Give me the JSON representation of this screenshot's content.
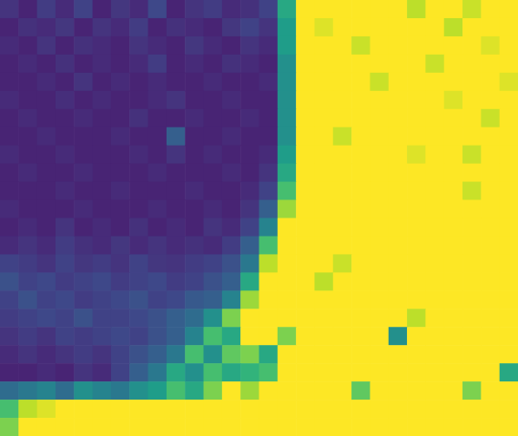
{
  "chart_data": {
    "type": "heatmap",
    "tick_labels": false,
    "color": "viridis",
    "color_range": [
      0,
      1
    ],
    "cells": [
      [
        0.15,
        0.1,
        0.18,
        0.12,
        0.2,
        0.1,
        0.16,
        0.12,
        0.22,
        0.1,
        0.15,
        0.18,
        0.12,
        0.14,
        0.2,
        0.6,
        1,
        1,
        1,
        1,
        1,
        1,
        0.9,
        1,
        1,
        0.92,
        1,
        1
      ],
      [
        0.1,
        0.14,
        0.12,
        0.16,
        0.1,
        0.15,
        0.12,
        0.18,
        0.1,
        0.14,
        0.12,
        0.1,
        0.16,
        0.2,
        0.15,
        0.55,
        1,
        0.95,
        1,
        1,
        1,
        1,
        1,
        1,
        0.9,
        1,
        1,
        1
      ],
      [
        0.12,
        0.1,
        0.15,
        0.1,
        0.14,
        0.12,
        0.1,
        0.15,
        0.12,
        0.1,
        0.16,
        0.12,
        0.1,
        0.15,
        0.12,
        0.55,
        1,
        1,
        1,
        0.92,
        1,
        1,
        1,
        1,
        1,
        1,
        0.95,
        1
      ],
      [
        0.1,
        0.12,
        0.1,
        0.14,
        0.1,
        0.12,
        0.1,
        0.12,
        0.18,
        0.1,
        0.12,
        0.1,
        0.14,
        0.12,
        0.1,
        0.5,
        1,
        1,
        1,
        1,
        1,
        1,
        1,
        0.92,
        1,
        1,
        1,
        1
      ],
      [
        0.1,
        0.1,
        0.12,
        0.1,
        0.15,
        0.1,
        0.12,
        0.1,
        0.12,
        0.1,
        0.1,
        0.12,
        0.1,
        0.1,
        0.12,
        0.5,
        1,
        1,
        1,
        1,
        0.92,
        1,
        1,
        1,
        1,
        1,
        1,
        0.95
      ],
      [
        0.12,
        0.1,
        0.1,
        0.13,
        0.1,
        0.12,
        0.1,
        0.1,
        0.12,
        0.15,
        0.1,
        0.1,
        0.12,
        0.1,
        0.1,
        0.5,
        1,
        1,
        1,
        1,
        1,
        1,
        1,
        1,
        0.95,
        1,
        1,
        1
      ],
      [
        0.1,
        0.12,
        0.1,
        0.1,
        0.12,
        0.1,
        0.1,
        0.14,
        0.1,
        0.1,
        0.12,
        0.1,
        0.1,
        0.12,
        0.1,
        0.5,
        1,
        1,
        1,
        1,
        1,
        1,
        1,
        1,
        1,
        1,
        0.92,
        1
      ],
      [
        0.1,
        0.1,
        0.12,
        0.1,
        0.1,
        0.1,
        0.12,
        0.1,
        0.1,
        0.3,
        0.1,
        0.1,
        0.12,
        0.1,
        0.1,
        0.5,
        1,
        1,
        0.92,
        1,
        1,
        1,
        1,
        1,
        1,
        1,
        1,
        1
      ],
      [
        0.12,
        0.1,
        0.1,
        0.12,
        0.1,
        0.1,
        0.1,
        0.12,
        0.1,
        0.15,
        0.1,
        0.12,
        0.1,
        0.1,
        0.12,
        0.55,
        1,
        1,
        1,
        1,
        1,
        1,
        0.95,
        1,
        1,
        0.92,
        1,
        1
      ],
      [
        0.1,
        0.12,
        0.1,
        0.1,
        0.12,
        0.1,
        0.1,
        0.1,
        0.12,
        0.1,
        0.1,
        0.1,
        0.12,
        0.1,
        0.15,
        0.6,
        1,
        1,
        1,
        1,
        1,
        1,
        1,
        1,
        1,
        1,
        1,
        1
      ],
      [
        0.1,
        0.1,
        0.1,
        0.12,
        0.1,
        0.1,
        0.12,
        0.1,
        0.1,
        0.1,
        0.12,
        0.1,
        0.1,
        0.12,
        0.2,
        0.7,
        1,
        1,
        1,
        1,
        1,
        1,
        1,
        1,
        1,
        0.92,
        1,
        1
      ],
      [
        0.12,
        0.1,
        0.1,
        0.1,
        0.12,
        0.1,
        0.1,
        0.1,
        0.12,
        0.1,
        0.1,
        0.12,
        0.1,
        0.15,
        0.3,
        0.85,
        1,
        1,
        1,
        1,
        1,
        1,
        1,
        1,
        1,
        1,
        1,
        1
      ],
      [
        0.1,
        0.12,
        0.1,
        0.15,
        0.1,
        0.12,
        0.1,
        0.14,
        0.1,
        0.12,
        0.1,
        0.15,
        0.12,
        0.2,
        0.45,
        1,
        1,
        1,
        1,
        1,
        1,
        1,
        1,
        1,
        1,
        1,
        1,
        1
      ],
      [
        0.12,
        0.15,
        0.12,
        0.18,
        0.14,
        0.12,
        0.16,
        0.12,
        0.15,
        0.12,
        0.14,
        0.12,
        0.18,
        0.3,
        0.7,
        1,
        1,
        1,
        1,
        1,
        1,
        1,
        1,
        1,
        1,
        1,
        1,
        1
      ],
      [
        0.2,
        0.18,
        0.15,
        0.2,
        0.16,
        0.18,
        0.15,
        0.2,
        0.16,
        0.15,
        0.18,
        0.2,
        0.25,
        0.4,
        0.9,
        1,
        1,
        1,
        0.92,
        1,
        1,
        1,
        1,
        1,
        1,
        1,
        1,
        1
      ],
      [
        0.25,
        0.2,
        0.22,
        0.18,
        0.2,
        0.22,
        0.18,
        0.2,
        0.22,
        0.18,
        0.2,
        0.25,
        0.3,
        0.6,
        1,
        1,
        1,
        0.9,
        1,
        1,
        1,
        1,
        1,
        1,
        1,
        1,
        1,
        1
      ],
      [
        0.2,
        0.25,
        0.2,
        0.22,
        0.18,
        0.2,
        0.22,
        0.25,
        0.2,
        0.22,
        0.28,
        0.3,
        0.45,
        0.85,
        1,
        1,
        1,
        1,
        1,
        1,
        1,
        1,
        1,
        1,
        1,
        1,
        1,
        1
      ],
      [
        0.18,
        0.2,
        0.22,
        0.2,
        0.25,
        0.2,
        0.2,
        0.22,
        0.25,
        0.3,
        0.35,
        0.5,
        0.8,
        1,
        1,
        1,
        1,
        1,
        1,
        1,
        1,
        1,
        0.9,
        1,
        1,
        1,
        1,
        1
      ],
      [
        0.15,
        0.18,
        0.15,
        0.2,
        0.18,
        0.2,
        0.22,
        0.2,
        0.25,
        0.3,
        0.45,
        0.7,
        0.6,
        1,
        1,
        0.8,
        1,
        1,
        1,
        1,
        1,
        0.5,
        1,
        1,
        1,
        1,
        1,
        1
      ],
      [
        0.12,
        0.15,
        0.12,
        0.15,
        0.18,
        0.15,
        0.2,
        0.25,
        0.3,
        0.4,
        0.7,
        0.5,
        0.75,
        0.8,
        0.6,
        1,
        1,
        1,
        1,
        1,
        1,
        1,
        1,
        1,
        1,
        1,
        1,
        1
      ],
      [
        0.1,
        0.1,
        0.12,
        0.1,
        0.15,
        0.12,
        0.2,
        0.3,
        0.4,
        0.6,
        0.5,
        0.7,
        0.6,
        0.65,
        0.7,
        1,
        1,
        1,
        1,
        1,
        1,
        1,
        1,
        1,
        1,
        1,
        1,
        0.6
      ],
      [
        0.35,
        0.4,
        0.45,
        0.35,
        0.5,
        0.45,
        0.4,
        0.5,
        0.55,
        0.7,
        0.6,
        0.8,
        1,
        0.85,
        1,
        1,
        1,
        1,
        1,
        0.75,
        1,
        1,
        1,
        1,
        1,
        0.8,
        1,
        1
      ],
      [
        0.7,
        0.9,
        0.95,
        1,
        1,
        1,
        1,
        1,
        1,
        1,
        1,
        1,
        1,
        1,
        1,
        1,
        1,
        1,
        1,
        1,
        1,
        1,
        1,
        1,
        1,
        1,
        1,
        1
      ],
      [
        0.8,
        1,
        1,
        1,
        1,
        1,
        1,
        1,
        1,
        1,
        1,
        1,
        1,
        1,
        1,
        1,
        1,
        1,
        1,
        1,
        1,
        1,
        1,
        1,
        1,
        1,
        1,
        1
      ]
    ]
  }
}
